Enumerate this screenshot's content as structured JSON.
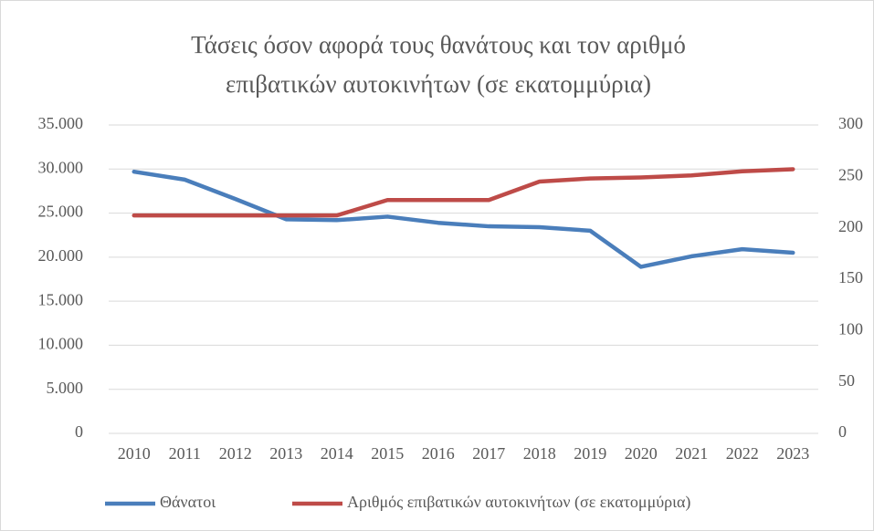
{
  "chart_data": {
    "type": "line",
    "title": "Τάσεις όσον αφορά τους θανάτους και τον αριθμό επιβατικών αυτοκινήτων (σε εκατομμύρια)",
    "categories": [
      "2010",
      "2011",
      "2012",
      "2013",
      "2014",
      "2015",
      "2016",
      "2017",
      "2018",
      "2019",
      "2020",
      "2021",
      "2022",
      "2023"
    ],
    "series": [
      {
        "name": "Θάνατοι",
        "color": "#4a7ebb",
        "values": [
          29700,
          28800,
          26600,
          24300,
          24200,
          24600,
          23900,
          23500,
          23400,
          23000,
          18900,
          20100,
          20900,
          20500
        ]
      },
      {
        "name": "Αριθμός επιβατικών αυτοκινήτων (σε εκατομμύρια)",
        "color": "#be4b48",
        "axis": "y2",
        "values": [
          212,
          212,
          212,
          212,
          212,
          227,
          227,
          227,
          245,
          248,
          249,
          251,
          255,
          257
        ]
      }
    ],
    "ylim": [
      0,
      35000
    ],
    "yticks": [
      0,
      {
        "value": 5000,
        "label": "5.000"
      },
      {
        "value": 10000,
        "label": "10.000"
      },
      {
        "value": 15000,
        "label": "15.000"
      },
      {
        "value": 20000,
        "label": "20.000"
      },
      {
        "value": 25000,
        "label": "25.000"
      },
      {
        "value": 30000,
        "label": "30.000"
      },
      {
        "value": 35000,
        "label": "35.000"
      }
    ],
    "y2lim": [
      0,
      300
    ],
    "y2ticks": [
      0,
      50,
      100,
      150,
      200,
      250,
      300
    ],
    "grid": true,
    "legend": "bottom"
  }
}
